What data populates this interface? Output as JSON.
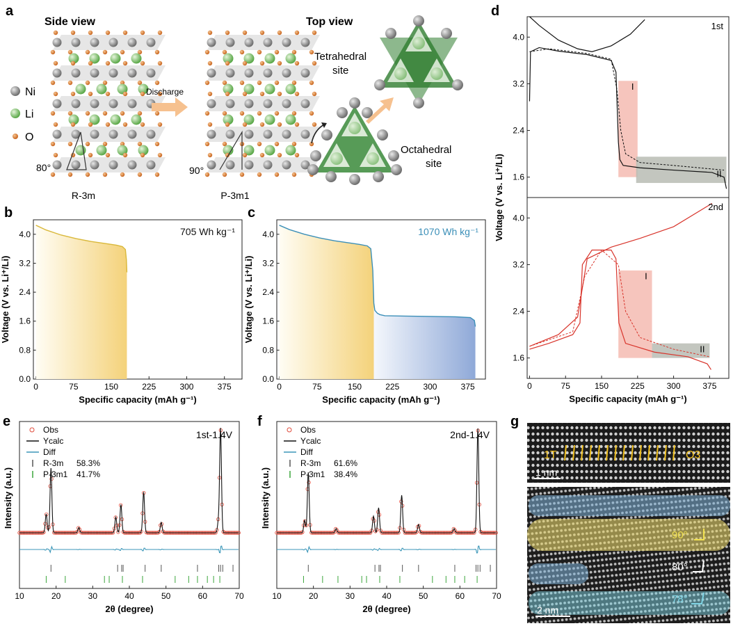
{
  "panel_labels": {
    "a": "a",
    "b": "b",
    "c": "c",
    "d": "d",
    "e": "e",
    "f": "f",
    "g": "g"
  },
  "panel_a": {
    "side_view": "Side view",
    "top_view": "Top view",
    "legend": [
      "Ni",
      "Li",
      "O"
    ],
    "arrow_label": "Discharge",
    "angle_left": "80°",
    "angle_right": "90°",
    "structure_left": "R-3m",
    "structure_right": "P-3m1",
    "tetrahedral_label_1": "Tetrahedral",
    "tetrahedral_label_2": "site",
    "octahedral_label_1": "Octahedral",
    "octahedral_label_2": "site",
    "colors": {
      "ni": "#8c8c8c",
      "li": "#7fc26b",
      "o": "#d77a36",
      "slab": "#d6d6d6",
      "tet": "#2f7d2f"
    }
  },
  "chart_data": [
    {
      "id": "b",
      "type": "area",
      "annotation": "705 Wh kg⁻¹",
      "xlabel": "Specific capacity (mAh g⁻¹)",
      "ylabel": "Voltage (V vs. Li⁺/Li)",
      "xlim": [
        -5,
        410
      ],
      "ylim": [
        0,
        4.4
      ],
      "xticks": [
        0,
        75,
        150,
        225,
        300,
        375
      ],
      "yticks": [
        0.0,
        0.8,
        1.6,
        2.4,
        3.2,
        4.0
      ],
      "series": [
        {
          "color": "#d9b83a",
          "x": [
            0,
            20,
            50,
            80,
            110,
            140,
            160,
            172,
            178,
            180,
            181
          ],
          "y": [
            4.25,
            4.12,
            3.98,
            3.88,
            3.8,
            3.74,
            3.7,
            3.66,
            3.58,
            3.3,
            2.95
          ]
        }
      ],
      "fill": [
        {
          "from": 0,
          "to": 181,
          "color": "#f2c84b"
        }
      ]
    },
    {
      "id": "c",
      "type": "area",
      "annotation": "1070 Wh kg⁻¹",
      "xlabel": "Specific capacity (mAh g⁻¹)",
      "ylabel": "Voltage (V vs. Li⁺/Li)",
      "xlim": [
        -5,
        410
      ],
      "ylim": [
        0,
        4.4
      ],
      "xticks": [
        0,
        75,
        150,
        225,
        300,
        375
      ],
      "yticks": [
        0.0,
        0.8,
        1.6,
        2.4,
        3.2,
        4.0
      ],
      "series": [
        {
          "color": "#3b8fb8",
          "x": [
            0,
            20,
            50,
            80,
            110,
            140,
            160,
            175,
            182,
            186,
            188,
            190,
            195,
            200,
            210,
            250,
            300,
            350,
            380,
            388,
            390
          ],
          "y": [
            4.25,
            4.13,
            4.0,
            3.9,
            3.82,
            3.76,
            3.72,
            3.68,
            3.6,
            3.0,
            2.1,
            1.9,
            1.82,
            1.78,
            1.75,
            1.74,
            1.73,
            1.72,
            1.7,
            1.62,
            1.45
          ]
        }
      ],
      "fill": [
        {
          "from": 0,
          "to": 188,
          "color": "#f2c84b"
        },
        {
          "from": 188,
          "to": 390,
          "color": "#8fa9d8"
        }
      ]
    },
    {
      "id": "d1",
      "type": "line",
      "annotation": "1st",
      "region_labels": [
        "I",
        "II"
      ],
      "xlim": [
        -5,
        415
      ],
      "ylim": [
        1.25,
        4.35
      ],
      "yticks": [
        1.6,
        2.4,
        3.2,
        4.0
      ],
      "colors": {
        "line": "#111111",
        "region1": "#f4b6ad",
        "region2": "#b9bcb4"
      }
    },
    {
      "id": "d2",
      "type": "line",
      "annotation": "2nd",
      "region_labels": [
        "I",
        "II"
      ],
      "xlabel": "Specific capacity (mAh g⁻¹)",
      "ylabel": "Voltage (V vs. Li⁺/Li)",
      "xlim": [
        -5,
        415
      ],
      "ylim": [
        1.25,
        4.35
      ],
      "xticks": [
        0,
        75,
        150,
        225,
        300,
        375
      ],
      "yticks": [
        1.6,
        2.4,
        3.2,
        4.0
      ],
      "colors": {
        "line": "#d8332a",
        "region1": "#f4b6ad",
        "region2": "#b9bcb4"
      }
    },
    {
      "id": "e",
      "type": "line",
      "annotation": "1st-1.4V",
      "legend": [
        {
          "label": "Obs",
          "kind": "circle",
          "color": "#e04a3a"
        },
        {
          "label": "Ycalc",
          "kind": "line",
          "color": "#111111"
        },
        {
          "label": "Diff",
          "kind": "line",
          "color": "#3b96b8"
        },
        {
          "label": "R-3m",
          "value": "58.3%",
          "kind": "tick",
          "color": "#555555"
        },
        {
          "label": "P-3m1",
          "value": "41.7%",
          "kind": "tick",
          "color": "#3aa53a"
        }
      ],
      "xlabel": "2θ (degree)",
      "ylabel": "Intensity (a.u.)",
      "xlim": [
        10,
        70
      ],
      "xticks": [
        10,
        20,
        30,
        40,
        50,
        60,
        70
      ],
      "peaks": [
        [
          17.3,
          0.18
        ],
        [
          18.6,
          0.62
        ],
        [
          26.2,
          0.05
        ],
        [
          36.3,
          0.15
        ],
        [
          37.7,
          0.27
        ],
        [
          43.9,
          0.39
        ],
        [
          48.7,
          0.1
        ],
        [
          64.3,
          0.1
        ],
        [
          64.9,
          1.0
        ]
      ],
      "r3m_ticks": [
        18.6,
        36.8,
        37.9,
        38.3,
        44.3,
        48.7,
        58.6,
        64.4,
        64.9,
        65.5,
        68.3
      ],
      "p3m1_ticks": [
        17.3,
        22.5,
        33.2,
        34.5,
        38.1,
        43.6,
        52.5,
        56.2,
        58.6,
        61.3,
        63.0,
        64.7
      ]
    },
    {
      "id": "f",
      "type": "line",
      "annotation": "2nd-1.4V",
      "legend": [
        {
          "label": "Obs",
          "kind": "circle",
          "color": "#e04a3a"
        },
        {
          "label": "Ycalc",
          "kind": "line",
          "color": "#111111"
        },
        {
          "label": "Diff",
          "kind": "line",
          "color": "#3b96b8"
        },
        {
          "label": "R-3m",
          "value": "61.6%",
          "kind": "tick",
          "color": "#555555"
        },
        {
          "label": "P-3m1",
          "value": "38.4%",
          "kind": "tick",
          "color": "#3aa53a"
        }
      ],
      "xlabel": "2θ (degree)",
      "ylabel": "Intensity (a.u.)",
      "xlim": [
        10,
        70
      ],
      "xticks": [
        10,
        20,
        30,
        40,
        50,
        60,
        70
      ],
      "peaks": [
        [
          17.6,
          0.12
        ],
        [
          18.6,
          0.58
        ],
        [
          26.2,
          0.04
        ],
        [
          36.4,
          0.16
        ],
        [
          37.8,
          0.24
        ],
        [
          44.1,
          0.36
        ],
        [
          48.7,
          0.08
        ],
        [
          58.4,
          0.04
        ],
        [
          64.9,
          1.0
        ]
      ],
      "r3m_ticks": [
        18.6,
        36.8,
        37.9,
        38.3,
        44.3,
        48.7,
        58.6,
        64.4,
        64.9,
        65.5,
        68.3
      ],
      "p3m1_ticks": [
        17.3,
        22.5,
        26.7,
        33.2,
        34.5,
        38.1,
        43.6,
        52.5,
        56.2,
        58.6,
        61.3,
        64.7
      ]
    }
  ],
  "panel_g": {
    "label_1t": "1T",
    "label_o3": "O3",
    "scale_top": "1 nm",
    "scale_bottom": "2 nm",
    "angle_90": "90°",
    "angle_80": "80°",
    "angle_78": "78°",
    "colors": {
      "blue": "#7fb3d8",
      "yellow": "#e6d36a",
      "cyan": "#7fd4e4",
      "white": "#ffffff"
    }
  }
}
